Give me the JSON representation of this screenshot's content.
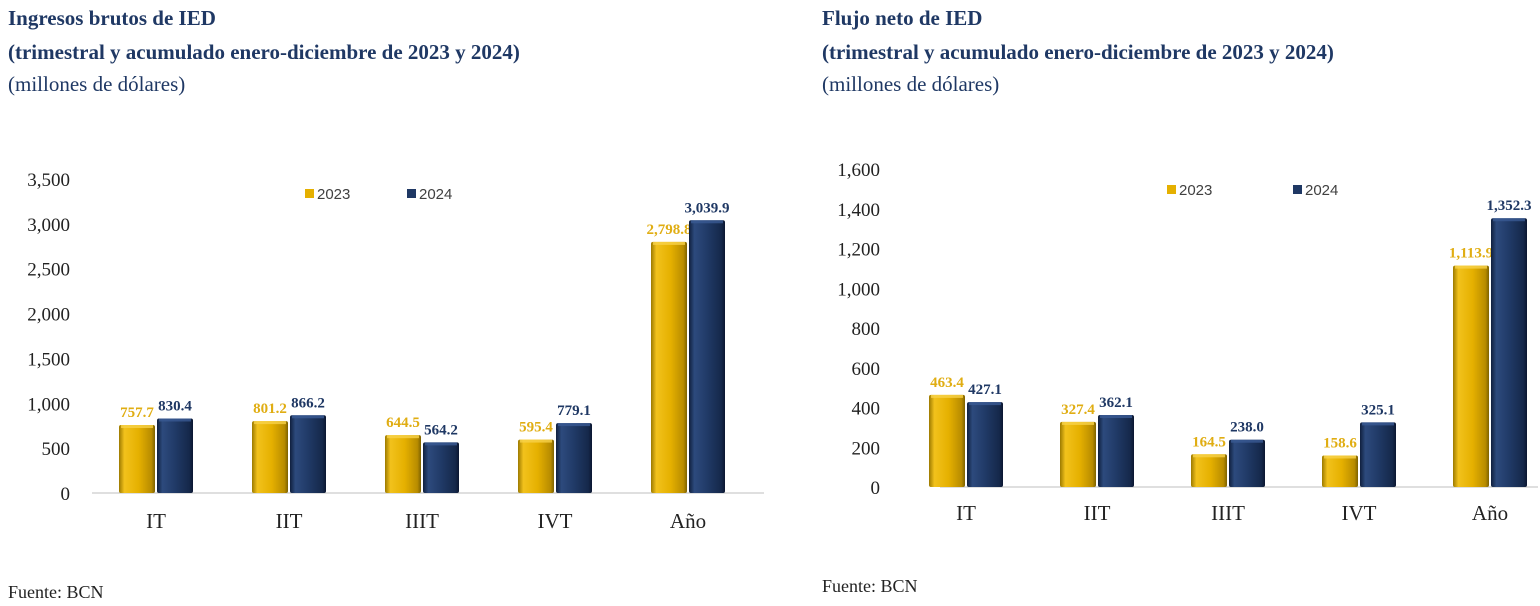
{
  "panels": [
    {
      "title": "Ingresos brutos de IED",
      "subtitle": "(trimestral y acumulado enero-diciembre de 2023 y 2024)",
      "units": "(millones de dólares)",
      "source": "Fuente: BCN"
    },
    {
      "title": "Flujo neto de IED",
      "subtitle": "(trimestral y acumulado enero-diciembre de 2023 y 2024)",
      "units": "(millones de dólares)",
      "source": "Fuente: BCN"
    }
  ],
  "colors": {
    "series_2023": "#e5b000",
    "series_2024": "#1f3864",
    "label_2023": "#e0ad12",
    "label_2024": "#1f3864"
  },
  "chart_data": [
    {
      "type": "bar",
      "title": "Ingresos brutos de IED",
      "categories": [
        "IT",
        "IIT",
        "IIIT",
        "IVT",
        "Año"
      ],
      "series": [
        {
          "name": "2023",
          "values": [
            757.7,
            801.2,
            644.5,
            595.4,
            2798.8
          ],
          "labels": [
            "757.7",
            "801.2",
            "644.5",
            "595.4",
            "2,798.8"
          ]
        },
        {
          "name": "2024",
          "values": [
            830.4,
            866.2,
            564.2,
            779.1,
            3039.9
          ],
          "labels": [
            "830.4",
            "866.2",
            "564.2",
            "779.1",
            "3,039.9"
          ]
        }
      ],
      "yticks": [
        0,
        500,
        1000,
        1500,
        2000,
        2500,
        3000,
        3500
      ],
      "ytick_labels": [
        "0",
        "500",
        "1,000",
        "1,500",
        "2,000",
        "2,500",
        "3,000",
        "3,500"
      ],
      "ylim": [
        0,
        3500
      ],
      "grid": false,
      "legend": "top-center"
    },
    {
      "type": "bar",
      "title": "Flujo neto de IED",
      "categories": [
        "IT",
        "IIT",
        "IIIT",
        "IVT",
        "Año"
      ],
      "series": [
        {
          "name": "2023",
          "values": [
            463.4,
            327.4,
            164.5,
            158.6,
            1113.9
          ],
          "labels": [
            "463.4",
            "327.4",
            "164.5",
            "158.6",
            "1,113.9"
          ]
        },
        {
          "name": "2024",
          "values": [
            427.1,
            362.1,
            238.0,
            325.1,
            1352.3
          ],
          "labels": [
            "427.1",
            "362.1",
            "238.0",
            "325.1",
            "1,352.3"
          ]
        }
      ],
      "yticks": [
        0,
        200,
        400,
        600,
        800,
        1000,
        1200,
        1400,
        1600
      ],
      "ytick_labels": [
        "0",
        "200",
        "400",
        "600",
        "800",
        "1,000",
        "1,200",
        "1,400",
        "1,600"
      ],
      "ylim": [
        0,
        1600
      ],
      "grid": false,
      "legend": "top-center"
    }
  ]
}
